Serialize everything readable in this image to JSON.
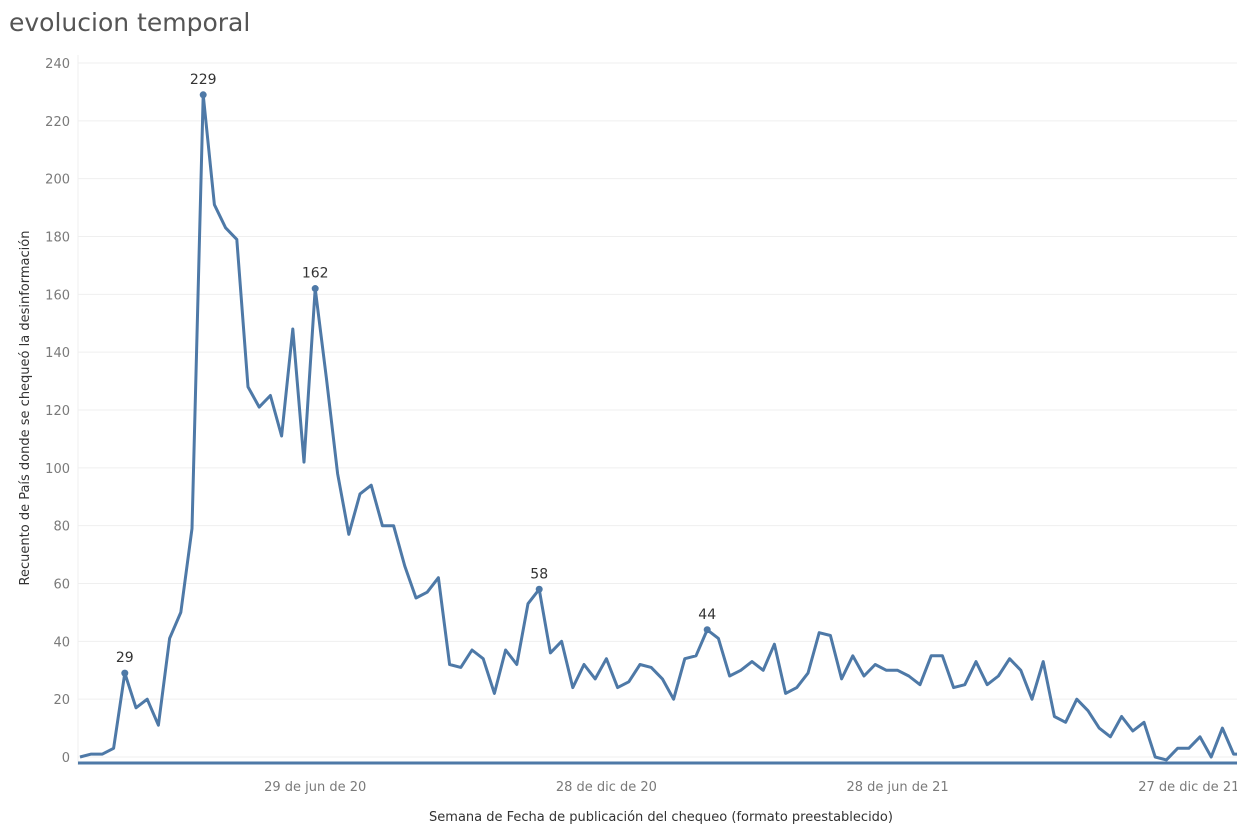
{
  "title": "evolucion temporal",
  "colors": {
    "line": "#4e79a7",
    "grid": "#efefef",
    "zero_line": "#4e79a7"
  },
  "chart_data": {
    "type": "line",
    "title": "evolucion temporal",
    "xlabel": "Semana de Fecha de publicación del chequeo (formato preestablecido)",
    "ylabel": "Recuento de País donde se chequeó la desinformación",
    "ylim": [
      0,
      240
    ],
    "yticks": [
      0,
      20,
      40,
      60,
      80,
      100,
      120,
      140,
      160,
      180,
      200,
      220,
      240
    ],
    "xticks": [
      {
        "index": 21,
        "label": "29 de jun de 20"
      },
      {
        "index": 47,
        "label": "28 de dic de 20"
      },
      {
        "index": 73,
        "label": "28 de jun de 21"
      },
      {
        "index": 99,
        "label": "27 de dic de 21"
      }
    ],
    "grid": true,
    "values": [
      0,
      1,
      1,
      3,
      29,
      17,
      20,
      11,
      41,
      50,
      79,
      229,
      191,
      183,
      179,
      128,
      121,
      125,
      111,
      148,
      102,
      162,
      131,
      98,
      77,
      91,
      94,
      80,
      80,
      66,
      55,
      57,
      62,
      32,
      31,
      37,
      34,
      22,
      37,
      32,
      53,
      58,
      36,
      40,
      24,
      32,
      27,
      34,
      24,
      26,
      32,
      31,
      27,
      20,
      34,
      35,
      44,
      41,
      28,
      30,
      33,
      30,
      39,
      22,
      24,
      29,
      43,
      42,
      27,
      35,
      28,
      32,
      30,
      30,
      28,
      25,
      35,
      35,
      24,
      25,
      33,
      25,
      28,
      34,
      30,
      20,
      33,
      14,
      12,
      20,
      16,
      10,
      7,
      14,
      9,
      12,
      0,
      -1,
      3,
      3,
      7,
      0,
      10,
      1,
      1
    ],
    "labeled_points": [
      {
        "index": 4,
        "label": "29"
      },
      {
        "index": 11,
        "label": "229"
      },
      {
        "index": 21,
        "label": "162"
      },
      {
        "index": 41,
        "label": "58"
      },
      {
        "index": 56,
        "label": "44"
      }
    ]
  }
}
